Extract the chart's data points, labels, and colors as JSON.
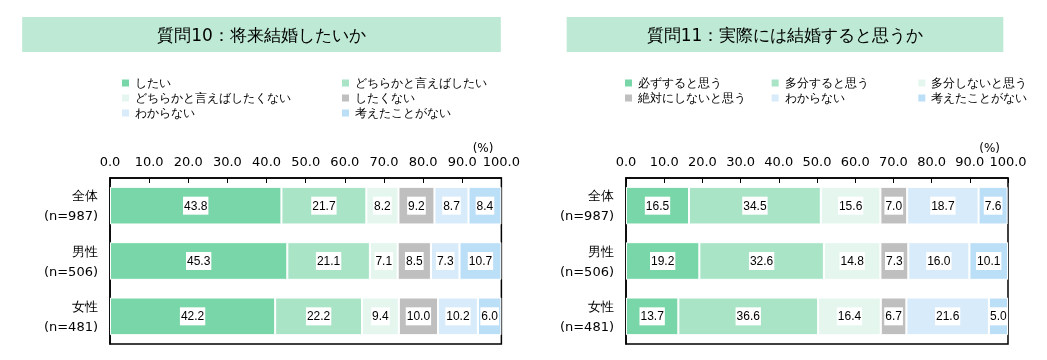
{
  "chart_data": [
    {
      "type": "bar",
      "orientation": "horizontal",
      "stacked": true,
      "title": "質問10：将来結婚したいか",
      "xlabel": "(%)",
      "categories": [
        "全体\n(n=987)",
        "男性\n(n=506)",
        "女性\n(n=481)"
      ],
      "xlim": [
        0,
        100
      ],
      "xticks": [
        {
          "value": 0,
          "label": "0.0"
        },
        {
          "value": 10,
          "label": "10.0"
        },
        {
          "value": 20,
          "label": "20.0"
        },
        {
          "value": 30,
          "label": "30.0"
        },
        {
          "value": 40,
          "label": "40.0"
        },
        {
          "value": 50,
          "label": "50.0"
        },
        {
          "value": 60,
          "label": "60.0"
        },
        {
          "value": 70,
          "label": "70.0"
        },
        {
          "value": 80,
          "label": "80.0"
        },
        {
          "value": 90,
          "label": "90.0"
        },
        {
          "value": 100,
          "label": "100.0"
        }
      ],
      "legend": "top",
      "grid": false,
      "series": [
        {
          "name": "したい",
          "color": "#78d6a8",
          "values": [
            43.8,
            45.3,
            42.2
          ],
          "value_labels": [
            "43.8",
            "45.3",
            "42.2"
          ]
        },
        {
          "name": "どちらかと言えばしたい",
          "color": "#a9e4c7",
          "values": [
            21.7,
            21.1,
            22.2
          ],
          "value_labels": [
            "21.7",
            "21.1",
            "22.2"
          ]
        },
        {
          "name": "どちらかと言えばしたくない",
          "color": "#e4f6ed",
          "values": [
            8.2,
            7.1,
            9.4
          ],
          "value_labels": [
            "8.2",
            "7.1",
            "9.4"
          ]
        },
        {
          "name": "したくない",
          "color": "#bfbfbf",
          "values": [
            9.2,
            8.5,
            10
          ],
          "value_labels": [
            "9.2",
            "8.5",
            "10.0"
          ]
        },
        {
          "name": "わからない",
          "color": "#d8ebfa",
          "values": [
            8.7,
            7.3,
            10.2
          ],
          "value_labels": [
            "8.7",
            "7.3",
            "10.2"
          ]
        },
        {
          "name": "考えたことがない",
          "color": "#bcdff8",
          "values": [
            8.4,
            10.7,
            6
          ],
          "value_labels": [
            "8.4",
            "10.7",
            "6.0"
          ]
        }
      ]
    },
    {
      "type": "bar",
      "orientation": "horizontal",
      "stacked": true,
      "title": "質問11：実際には結婚すると思うか",
      "xlabel": "(%)",
      "categories": [
        "全体\n(n=987)",
        "男性\n(n=506)",
        "女性\n(n=481)"
      ],
      "xlim": [
        0,
        100
      ],
      "xticks": [
        {
          "value": 0,
          "label": "0.0"
        },
        {
          "value": 10,
          "label": "10.0"
        },
        {
          "value": 20,
          "label": "20.0"
        },
        {
          "value": 30,
          "label": "30.0"
        },
        {
          "value": 40,
          "label": "40.0"
        },
        {
          "value": 50,
          "label": "50.0"
        },
        {
          "value": 60,
          "label": "60.0"
        },
        {
          "value": 70,
          "label": "70.0"
        },
        {
          "value": 80,
          "label": "80.0"
        },
        {
          "value": 90,
          "label": "90.0"
        },
        {
          "value": 100,
          "label": "100.0"
        }
      ],
      "legend": "top",
      "grid": false,
      "series": [
        {
          "name": "必ずすると思う",
          "color": "#78d6a8",
          "values": [
            16.5,
            19.2,
            13.7
          ],
          "value_labels": [
            "16.5",
            "19.2",
            "13.7"
          ]
        },
        {
          "name": "多分すると思う",
          "color": "#a9e4c7",
          "values": [
            34.5,
            32.6,
            36.6
          ],
          "value_labels": [
            "34.5",
            "32.6",
            "36.6"
          ]
        },
        {
          "name": "多分しないと思う",
          "color": "#e4f6ed",
          "values": [
            15.6,
            14.8,
            16.4
          ],
          "value_labels": [
            "15.6",
            "14.8",
            "16.4"
          ]
        },
        {
          "name": "絶対にしないと思う",
          "color": "#bfbfbf",
          "values": [
            7,
            7.3,
            6.7
          ],
          "value_labels": [
            "7.0",
            "7.3",
            "6.7"
          ]
        },
        {
          "name": "わからない",
          "color": "#d8ebfa",
          "values": [
            18.7,
            16,
            21.6
          ],
          "value_labels": [
            "18.7",
            "16.0",
            "21.6"
          ]
        },
        {
          "name": "考えたことがない",
          "color": "#bcdff8",
          "values": [
            7.6,
            10.1,
            5
          ],
          "value_labels": [
            "7.6",
            "10.1",
            "5.0"
          ]
        }
      ]
    }
  ]
}
